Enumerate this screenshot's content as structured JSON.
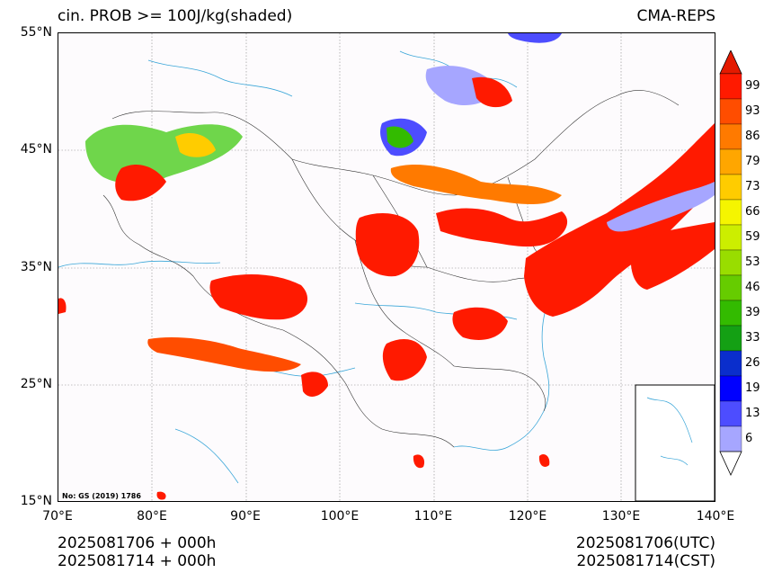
{
  "header": {
    "title_left": "cin. PROB >= 100J/kg(shaded)",
    "title_right": "CMA-REPS"
  },
  "map": {
    "lat_labels": [
      "55°N",
      "45°N",
      "35°N",
      "25°N",
      "15°N"
    ],
    "lon_labels": [
      "70°E",
      "80°E",
      "90°E",
      "100°E",
      "110°E",
      "120°E",
      "130°E",
      "140°E"
    ],
    "stamp": "No: GS (2019) 1786"
  },
  "colorbar": {
    "labels": [
      "99",
      "93",
      "86",
      "79",
      "73",
      "66",
      "59",
      "53",
      "46",
      "39",
      "33",
      "26",
      "19",
      "13",
      "6"
    ],
    "colors": [
      "#ff1a00",
      "#ff4d00",
      "#ff7a00",
      "#ffa600",
      "#ffcc00",
      "#f5f500",
      "#ccee00",
      "#99dd00",
      "#66cc00",
      "#33bb00",
      "#14a014",
      "#0a2ecc",
      "#0000ff",
      "#4d4dff",
      "#a6a6ff"
    ],
    "top_arrow_color": "#e41a00",
    "bottom_arrow_color": "#ffffff"
  },
  "footer": {
    "init_line1": "2025081706  +  000h",
    "init_line2": "2025081714  +  000h",
    "valid_line1": "2025081706(UTC)",
    "valid_line2": "2025081714(CST)"
  }
}
